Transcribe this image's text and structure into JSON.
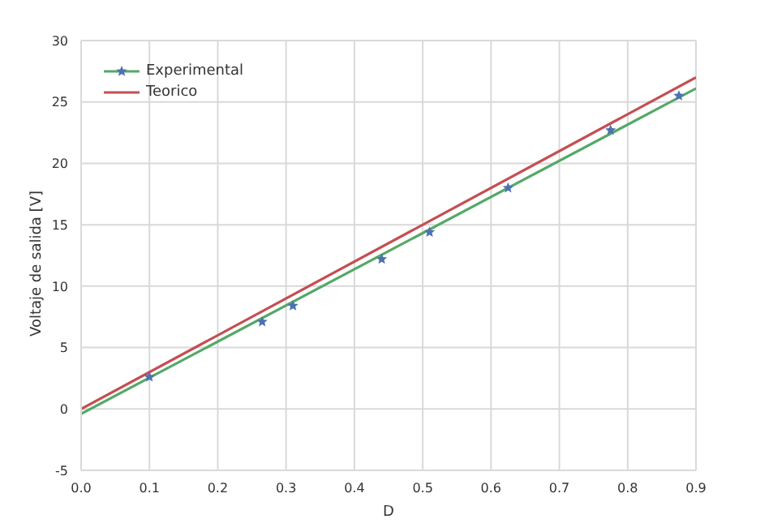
{
  "chart_data": {
    "type": "line",
    "xlabel": "D",
    "ylabel": "Voltaje de salida [V]",
    "series": [
      {
        "name": "Experimental",
        "type": "scatter",
        "color": "#4c72b0",
        "marker": "star",
        "x": [
          0.1,
          0.265,
          0.31,
          0.44,
          0.51,
          0.625,
          0.775,
          0.875
        ],
        "values": [
          2.6,
          7.1,
          8.4,
          12.2,
          14.4,
          18.0,
          22.7,
          25.5
        ]
      },
      {
        "color": "#55a868",
        "x": [
          0,
          0.9
        ],
        "values": [
          -0.4,
          26.1
        ]
      },
      {
        "name": "Teorico",
        "color": "#c44e52",
        "x": [
          0,
          0.9
        ],
        "values": [
          0,
          27
        ]
      }
    ],
    "xlim": [
      0,
      0.9
    ],
    "xticks": [
      {
        "value": 0,
        "label": "0.0"
      },
      0.1,
      0.2,
      0.3,
      0.4,
      0.5,
      0.6,
      0.7,
      0.8,
      0.9
    ],
    "ylim": [
      -5,
      30
    ],
    "yticks": [
      -5,
      0,
      5,
      10,
      15,
      20,
      25,
      30
    ],
    "grid": true,
    "legend": "top left"
  }
}
